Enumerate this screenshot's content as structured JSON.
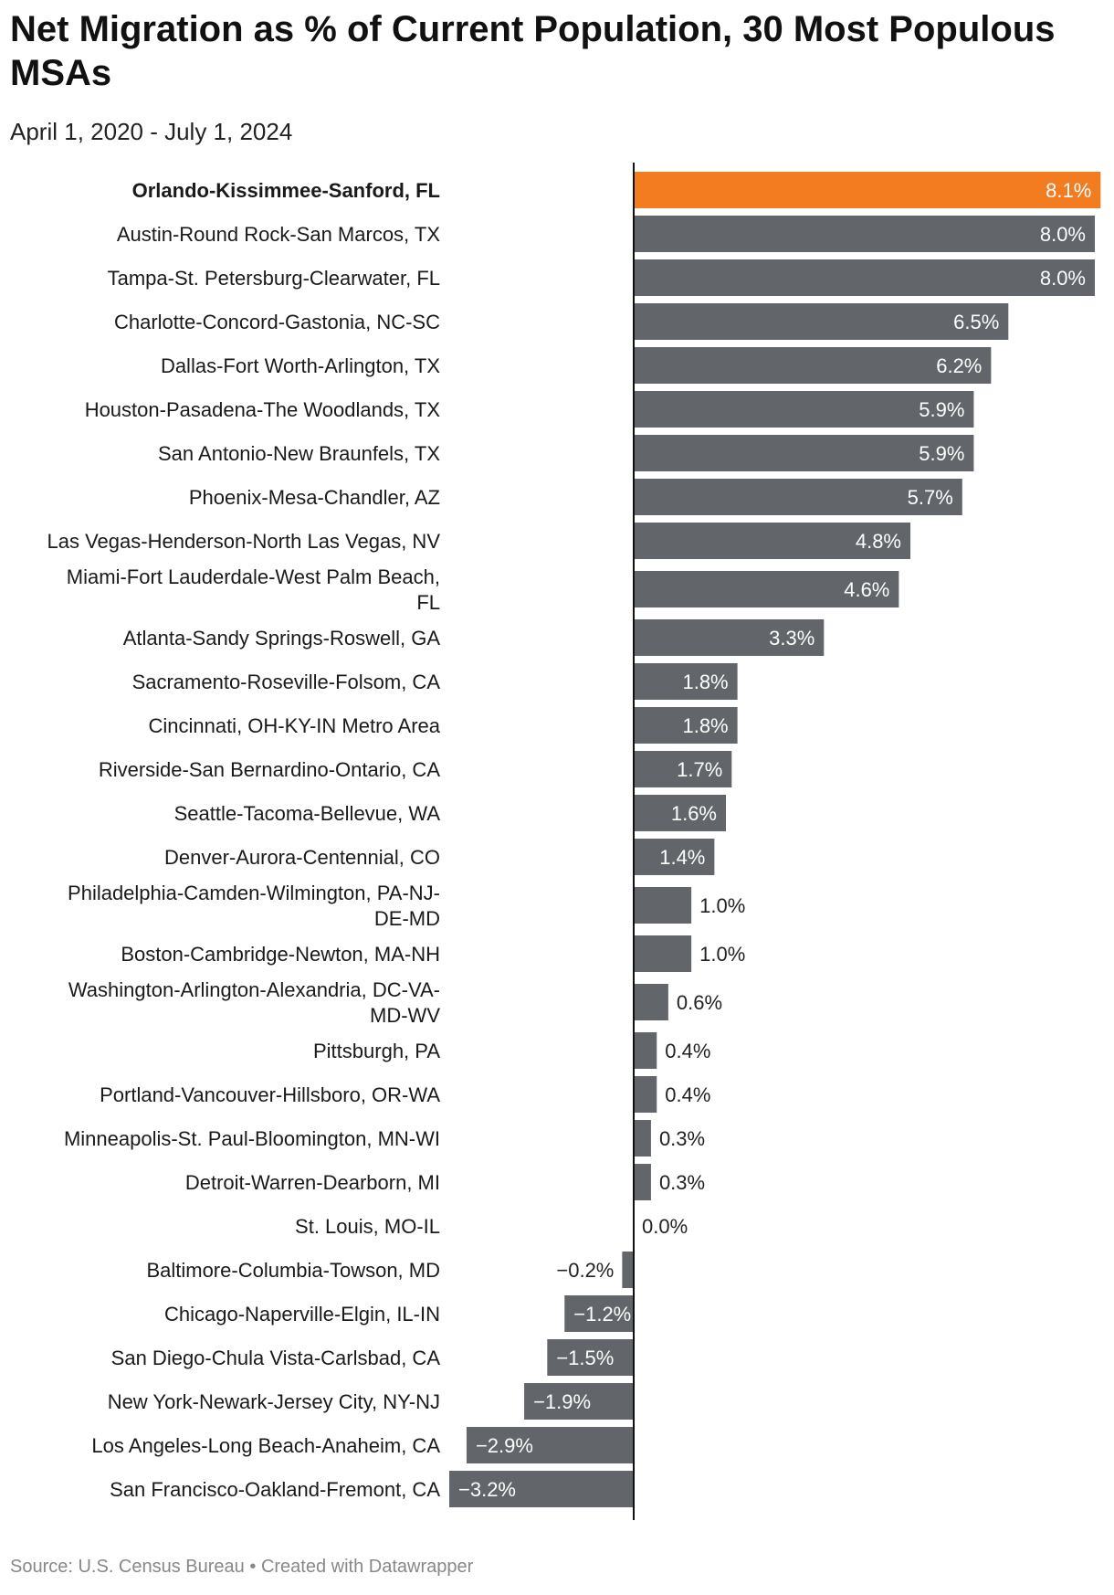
{
  "title": "Net Migration as % of Current Population, 30 Most Populous MSAs",
  "subtitle": "April 1, 2020 - July 1, 2024",
  "footer": {
    "source": "Source: U.S. Census Bureau",
    "separator": "•",
    "credit": "Created with Datawrapper"
  },
  "colors": {
    "highlight": "#f47c20",
    "bar": "#62666a",
    "axis": "#111111",
    "label_inside": "#ffffff",
    "label_outside": "#222222"
  },
  "chart_data": {
    "type": "bar",
    "orientation": "horizontal",
    "title": "Net Migration as % of Current Population, 30 Most Populous MSAs",
    "subtitle": "April 1, 2020 - July 1, 2024",
    "unit": "%",
    "xlim": [
      -3.2,
      8.1
    ],
    "highlight": "Orlando-Kissimmee-Sanford, FL",
    "categories": [
      "Orlando-Kissimmee-Sanford, FL",
      "Austin-Round Rock-San Marcos, TX",
      "Tampa-St. Petersburg-Clearwater, FL",
      "Charlotte-Concord-Gastonia, NC-SC",
      "Dallas-Fort Worth-Arlington, TX",
      "Houston-Pasadena-The Woodlands, TX",
      "San Antonio-New Braunfels, TX",
      "Phoenix-Mesa-Chandler, AZ",
      "Las Vegas-Henderson-North Las Vegas, NV",
      "Miami-Fort Lauderdale-West Palm Beach, FL",
      "Atlanta-Sandy Springs-Roswell, GA",
      "Sacramento-Roseville-Folsom, CA",
      "Cincinnati, OH-KY-IN Metro Area",
      "Riverside-San Bernardino-Ontario, CA",
      "Seattle-Tacoma-Bellevue, WA",
      "Denver-Aurora-Centennial, CO",
      "Philadelphia-Camden-Wilmington, PA-NJ-DE-MD",
      "Boston-Cambridge-Newton, MA-NH",
      "Washington-Arlington-Alexandria, DC-VA-MD-WV",
      "Pittsburgh, PA",
      "Portland-Vancouver-Hillsboro, OR-WA",
      "Minneapolis-St. Paul-Bloomington, MN-WI",
      "Detroit-Warren-Dearborn, MI",
      "St. Louis, MO-IL",
      "Baltimore-Columbia-Towson, MD",
      "Chicago-Naperville-Elgin, IL-IN",
      "San Diego-Chula Vista-Carlsbad, CA",
      "New York-Newark-Jersey City, NY-NJ",
      "Los Angeles-Long Beach-Anaheim, CA",
      "San Francisco-Oakland-Fremont, CA"
    ],
    "label_lines": [
      [
        "Orlando-Kissimmee-Sanford, FL"
      ],
      [
        "Austin-Round Rock-San Marcos, TX"
      ],
      [
        "Tampa-St. Petersburg-Clearwater, FL"
      ],
      [
        "Charlotte-Concord-Gastonia, NC-SC"
      ],
      [
        "Dallas-Fort Worth-Arlington, TX"
      ],
      [
        "Houston-Pasadena-The Woodlands, TX"
      ],
      [
        "San Antonio-New Braunfels, TX"
      ],
      [
        "Phoenix-Mesa-Chandler, AZ"
      ],
      [
        "Las Vegas-Henderson-North Las Vegas, NV"
      ],
      [
        "Miami-Fort Lauderdale-West Palm Beach,",
        "FL"
      ],
      [
        "Atlanta-Sandy Springs-Roswell, GA"
      ],
      [
        "Sacramento-Roseville-Folsom, CA"
      ],
      [
        "Cincinnati, OH-KY-IN Metro Area"
      ],
      [
        "Riverside-San Bernardino-Ontario, CA"
      ],
      [
        "Seattle-Tacoma-Bellevue, WA"
      ],
      [
        "Denver-Aurora-Centennial, CO"
      ],
      [
        "Philadelphia-Camden-Wilmington, PA-NJ-",
        "DE-MD"
      ],
      [
        "Boston-Cambridge-Newton, MA-NH"
      ],
      [
        "Washington-Arlington-Alexandria, DC-VA-",
        "MD-WV"
      ],
      [
        "Pittsburgh, PA"
      ],
      [
        "Portland-Vancouver-Hillsboro, OR-WA"
      ],
      [
        "Minneapolis-St. Paul-Bloomington, MN-WI"
      ],
      [
        "Detroit-Warren-Dearborn, MI"
      ],
      [
        "St. Louis, MO-IL"
      ],
      [
        "Baltimore-Columbia-Towson, MD"
      ],
      [
        "Chicago-Naperville-Elgin, IL-IN"
      ],
      [
        "San Diego-Chula Vista-Carlsbad, CA"
      ],
      [
        "New York-Newark-Jersey City, NY-NJ"
      ],
      [
        "Los Angeles-Long Beach-Anaheim, CA"
      ],
      [
        "San Francisco-Oakland-Fremont, CA"
      ]
    ],
    "values": [
      8.1,
      8.0,
      8.0,
      6.5,
      6.2,
      5.9,
      5.9,
      5.7,
      4.8,
      4.6,
      3.3,
      1.8,
      1.8,
      1.7,
      1.6,
      1.4,
      1.0,
      1.0,
      0.6,
      0.4,
      0.4,
      0.3,
      0.3,
      0.0,
      -0.2,
      -1.2,
      -1.5,
      -1.9,
      -2.9,
      -3.2
    ],
    "value_labels": [
      "8.1%",
      "8.0%",
      "8.0%",
      "6.5%",
      "6.2%",
      "5.9%",
      "5.9%",
      "5.7%",
      "4.8%",
      "4.6%",
      "3.3%",
      "1.8%",
      "1.8%",
      "1.7%",
      "1.6%",
      "1.4%",
      "1.0%",
      "1.0%",
      "0.6%",
      "0.4%",
      "0.4%",
      "0.3%",
      "0.3%",
      "0.0%",
      "−0.2%",
      "−1.2%",
      "−1.5%",
      "−1.9%",
      "−2.9%",
      "−3.2%"
    ]
  }
}
